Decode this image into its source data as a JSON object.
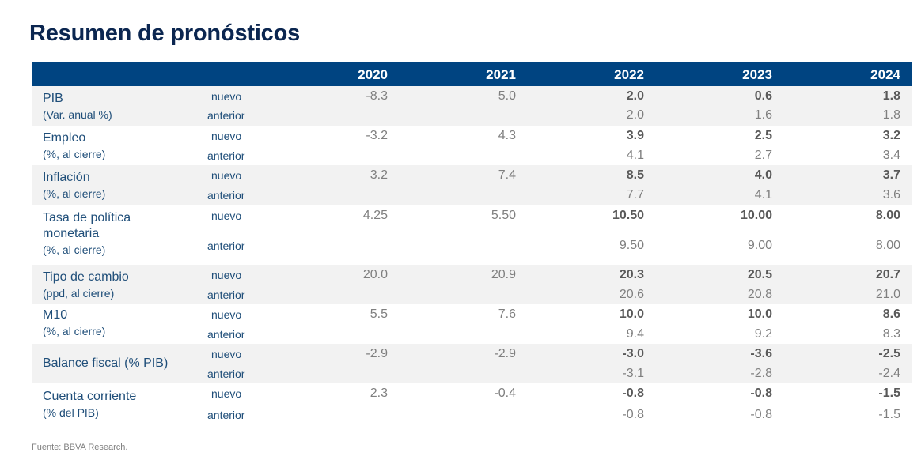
{
  "title": "Resumen de pronósticos",
  "source": "Fuente: BBVA Research.",
  "colors": {
    "header_bg": "#004481",
    "title": "#0b2650",
    "label": "#1f4e79",
    "shaded_row": "#f2f2f2"
  },
  "years": [
    "2020",
    "2021",
    "2022",
    "2023",
    "2024"
  ],
  "row_labels": {
    "nuevo": "nuevo",
    "anterior": "anterior"
  },
  "rows": [
    {
      "name": "PIB",
      "sub": "(Var. anual %)",
      "nuevo": [
        "-8.3",
        "5.0",
        "2.0",
        "0.6",
        "1.8"
      ],
      "anterior": [
        "",
        "",
        "2.0",
        "1.6",
        "1.8"
      ]
    },
    {
      "name": "Empleo",
      "sub": "(%, al cierre)",
      "nuevo": [
        "-3.2",
        "4.3",
        "3.9",
        "2.5",
        "3.2"
      ],
      "anterior": [
        "",
        "",
        "4.1",
        "2.7",
        "3.4"
      ]
    },
    {
      "name": "Inflación",
      "sub": "(%, al cierre)",
      "nuevo": [
        "3.2",
        "7.4",
        "8.5",
        "4.0",
        "3.7"
      ],
      "anterior": [
        "",
        "",
        "7.7",
        "4.1",
        "3.6"
      ]
    },
    {
      "name": "Tasa de política",
      "name2": "monetaria",
      "sub": "(%, al cierre)",
      "nuevo": [
        "4.25",
        "5.50",
        "10.50",
        "10.00",
        "8.00"
      ],
      "anterior": [
        "",
        "",
        "9.50",
        "9.00",
        "8.00"
      ]
    },
    {
      "name": "Tipo de cambio",
      "sub": "(ppd, al cierre)",
      "nuevo": [
        "20.0",
        "20.9",
        "20.3",
        "20.5",
        "20.7"
      ],
      "anterior": [
        "",
        "",
        "20.6",
        "20.8",
        "21.0"
      ]
    },
    {
      "name": "M10",
      "sub": "(%, al cierre)",
      "nuevo": [
        "5.5",
        "7.6",
        "10.0",
        "10.0",
        "8.6"
      ],
      "anterior": [
        "",
        "",
        "9.4",
        "9.2",
        "8.3"
      ]
    },
    {
      "name": "Balance fiscal (% PIB)",
      "sub": "",
      "nuevo": [
        "-2.9",
        "-2.9",
        "-3.0",
        "-3.6",
        "-2.5"
      ],
      "anterior": [
        "",
        "",
        "-3.1",
        "-2.8",
        "-2.4"
      ]
    },
    {
      "name": "Cuenta corriente",
      "sub": "(% del PIB)",
      "nuevo": [
        "2.3",
        "-0.4",
        "-0.8",
        "-0.8",
        "-1.5"
      ],
      "anterior": [
        "",
        "",
        "-0.8",
        "-0.8",
        "-1.5"
      ]
    }
  ]
}
